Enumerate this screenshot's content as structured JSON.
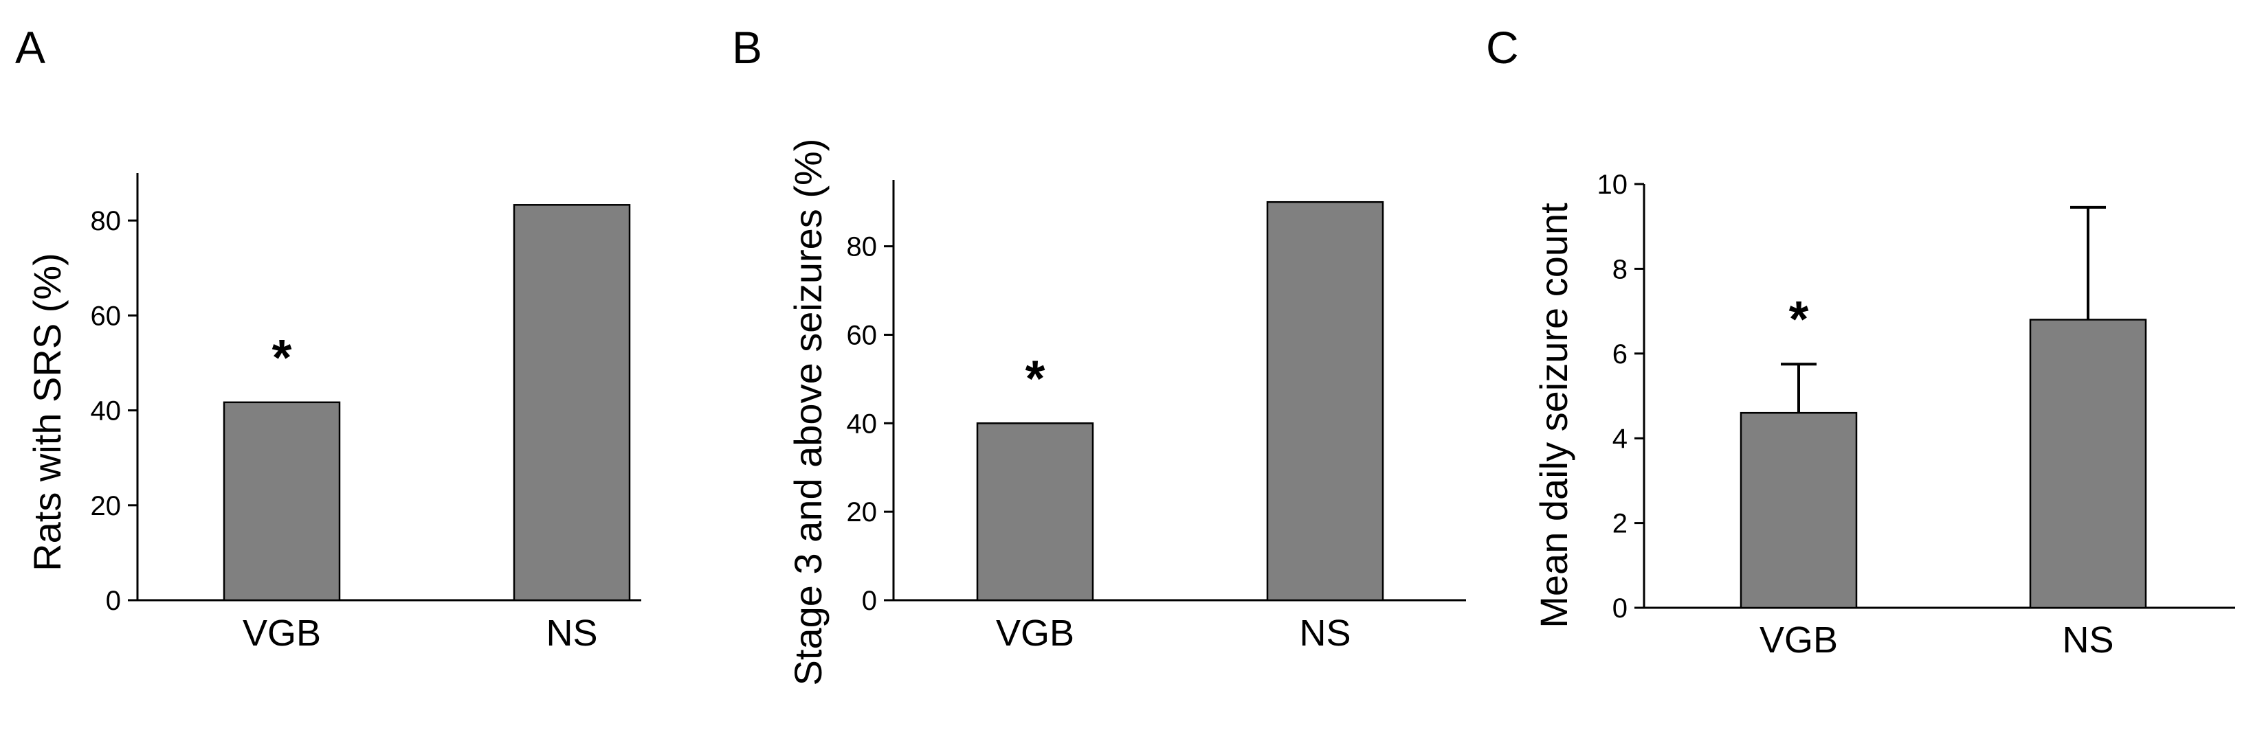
{
  "chart_data": [
    {
      "type": "bar",
      "panel": "A",
      "ylabel": "Rats with SRS (%)",
      "xlabel": "",
      "categories": [
        "VGB",
        "NS"
      ],
      "values": [
        41.7,
        83.3
      ],
      "errors": null,
      "ylim": [
        0,
        90
      ],
      "yticks": [
        0,
        20,
        40,
        60,
        80
      ],
      "annotations": [
        {
          "category": "VGB",
          "text": "*"
        }
      ],
      "bar_color": "#808080",
      "grid": false,
      "legend": "none"
    },
    {
      "type": "bar",
      "panel": "B",
      "ylabel": "Stage 3 and above seizures (%)",
      "xlabel": "",
      "categories": [
        "VGB",
        "NS"
      ],
      "values": [
        40,
        90
      ],
      "errors": null,
      "ylim": [
        0,
        95
      ],
      "yticks": [
        0,
        20,
        40,
        60,
        80
      ],
      "annotations": [
        {
          "category": "VGB",
          "text": "*"
        }
      ],
      "bar_color": "#808080",
      "grid": false,
      "legend": "none"
    },
    {
      "type": "bar",
      "panel": "C",
      "ylabel": "Mean daily seizure count",
      "xlabel": "",
      "categories": [
        "VGB",
        "NS"
      ],
      "values": [
        4.6,
        6.8
      ],
      "errors": [
        1.15,
        2.65
      ],
      "ylim": [
        0,
        10
      ],
      "yticks": [
        0,
        2,
        4,
        6,
        8,
        10
      ],
      "annotations": [
        {
          "category": "VGB",
          "text": "*"
        }
      ],
      "bar_color": "#808080",
      "grid": false,
      "legend": "none"
    }
  ]
}
